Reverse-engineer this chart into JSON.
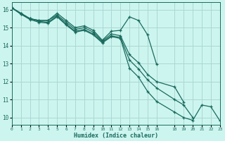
{
  "xlabel": "Humidex (Indice chaleur)",
  "bg_color": "#cdf5ef",
  "grid_color": "#aad8d3",
  "line_color": "#1a6b5e",
  "lines": [
    {
      "x": [
        0,
        1,
        2,
        3,
        4,
        5,
        6,
        7,
        8,
        9,
        10,
        11,
        12,
        13,
        14,
        15,
        16
      ],
      "y": [
        16.1,
        15.8,
        15.5,
        15.4,
        15.4,
        15.8,
        15.4,
        15.0,
        15.1,
        14.85,
        14.3,
        14.8,
        14.85,
        15.6,
        15.4,
        14.6,
        12.95
      ]
    },
    {
      "x": [
        0,
        1,
        2,
        3,
        4,
        5,
        6,
        7,
        8,
        9,
        10,
        11,
        12,
        13,
        14,
        15,
        16,
        18,
        19
      ],
      "y": [
        16.1,
        15.8,
        15.5,
        15.4,
        15.4,
        15.7,
        15.3,
        14.9,
        15.0,
        14.75,
        14.25,
        14.65,
        14.55,
        13.5,
        13.05,
        12.4,
        12.0,
        11.7,
        10.85
      ]
    },
    {
      "x": [
        0,
        1,
        2,
        3,
        4,
        5,
        6,
        7,
        8,
        9,
        10,
        11,
        12,
        13,
        14,
        15,
        16,
        18,
        19,
        20
      ],
      "y": [
        16.1,
        15.75,
        15.5,
        15.35,
        15.3,
        15.65,
        15.2,
        14.8,
        14.9,
        14.65,
        14.2,
        14.55,
        14.45,
        13.2,
        12.7,
        12.1,
        11.65,
        11.0,
        10.7,
        10.0
      ]
    },
    {
      "x": [
        0,
        1,
        2,
        3,
        4,
        5,
        6,
        7,
        8,
        9,
        10,
        11,
        12,
        13,
        14,
        15,
        16,
        18,
        19,
        20,
        21,
        22,
        23
      ],
      "y": [
        16.1,
        15.75,
        15.45,
        15.3,
        15.25,
        15.6,
        15.15,
        14.75,
        14.85,
        14.6,
        14.15,
        14.5,
        14.4,
        12.75,
        12.25,
        11.45,
        10.9,
        10.3,
        10.0,
        9.85,
        10.7,
        10.6,
        9.82
      ]
    }
  ],
  "xlim": [
    0,
    23
  ],
  "ylim": [
    9.6,
    16.4
  ],
  "yticks": [
    10,
    11,
    12,
    13,
    14,
    15,
    16
  ],
  "xtick_positions": [
    0,
    1,
    2,
    3,
    4,
    5,
    6,
    7,
    8,
    9,
    10,
    11,
    12,
    13,
    14,
    15,
    16,
    18,
    19,
    20,
    21,
    22,
    23
  ],
  "xtick_labels": [
    "0",
    "1",
    "2",
    "3",
    "4",
    "5",
    "6",
    "7",
    "8",
    "9",
    "10",
    "11",
    "12",
    "13",
    "14",
    "15",
    "16",
    "18",
    "19",
    "20",
    "21",
    "22",
    "23"
  ]
}
